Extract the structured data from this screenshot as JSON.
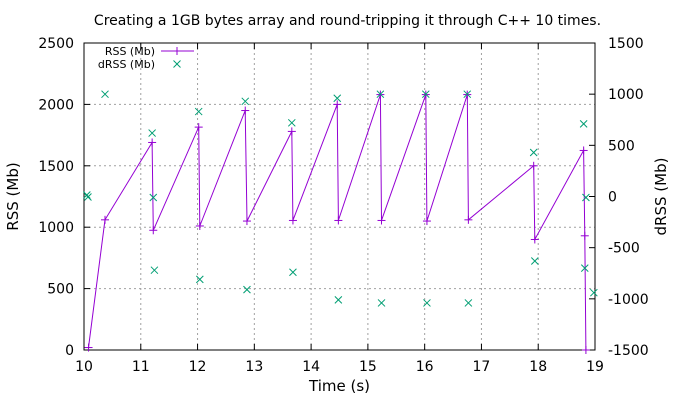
{
  "chart_data": {
    "type": "line",
    "title": "Creating a 1GB bytes array and round-tripping it through C++ 10 times.",
    "xlabel": "Time (s)",
    "ylabel": "RSS (Mb)",
    "y2label": "dRSS (Mb)",
    "xlim": [
      10,
      19
    ],
    "ylim": [
      0,
      2500
    ],
    "y2lim": [
      -1500,
      1500
    ],
    "xticks": [
      "10",
      "11",
      "12",
      "13",
      "14",
      "15",
      "16",
      "17",
      "18",
      "19"
    ],
    "yticks": [
      "0",
      "500",
      "1000",
      "1500",
      "2000",
      "2500"
    ],
    "y2ticks": [
      "-1500",
      "-1000",
      "-500",
      "0",
      "500",
      "1000",
      "1500"
    ],
    "grid": true,
    "legend_position": "top-left",
    "series": [
      {
        "name": "RSS (Mb)",
        "axis": "left",
        "style": "linespoints",
        "marker": "plus",
        "color": "#9400d3",
        "x": [
          10.08,
          10.37,
          11.2,
          11.22,
          12.02,
          12.04,
          12.84,
          12.87,
          13.66,
          13.68,
          14.46,
          14.48,
          15.22,
          15.24,
          16.02,
          16.04,
          16.75,
          16.77,
          17.92,
          17.94,
          18.8,
          18.82,
          18.84
        ],
        "y": [
          20,
          1060,
          1690,
          975,
          1815,
          1010,
          1950,
          1050,
          1780,
          1055,
          2000,
          1055,
          2080,
          1055,
          2080,
          1050,
          2080,
          1060,
          1500,
          900,
          1625,
          930,
          0
        ]
      },
      {
        "name": "dRSS (Mb)",
        "axis": "right",
        "style": "points",
        "marker": "x",
        "color": "#009e73",
        "x": [
          10.05,
          10.07,
          10.37,
          11.2,
          11.22,
          11.24,
          12.02,
          12.04,
          12.84,
          12.87,
          13.66,
          13.68,
          14.46,
          14.48,
          15.22,
          15.24,
          16.02,
          16.04,
          16.75,
          16.77,
          17.92,
          17.94,
          18.8,
          18.82,
          18.84,
          18.98
        ],
        "y": [
          15,
          -5,
          1000,
          620,
          -10,
          -720,
          830,
          -810,
          930,
          -910,
          720,
          -740,
          960,
          -1010,
          1000,
          -1040,
          1000,
          -1040,
          1000,
          -1040,
          430,
          -630,
          710,
          -700,
          -10,
          -940
        ]
      }
    ]
  }
}
